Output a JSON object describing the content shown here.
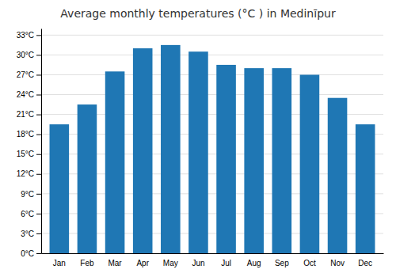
{
  "chart_data": {
    "type": "bar",
    "title": "Average monthly temperatures (°C ) in Medinīpur",
    "categories": [
      "Jan",
      "Feb",
      "Mar",
      "Apr",
      "May",
      "Jun",
      "Jul",
      "Aug",
      "Sep",
      "Oct",
      "Nov",
      "Dec"
    ],
    "values": [
      19.5,
      22.5,
      27.5,
      31.0,
      31.5,
      30.5,
      28.5,
      28.0,
      28.0,
      27.0,
      23.5,
      19.5
    ],
    "ylim": [
      0,
      34
    ],
    "yticks": [
      {
        "value": 0,
        "label": "0°C"
      },
      {
        "value": 3,
        "label": "3°C"
      },
      {
        "value": 6,
        "label": "6°C"
      },
      {
        "value": 9,
        "label": "9°C"
      },
      {
        "value": 12,
        "label": "12°C"
      },
      {
        "value": 15,
        "label": "15°C"
      },
      {
        "value": 18,
        "label": "18°C"
      },
      {
        "value": 21,
        "label": "21°C"
      },
      {
        "value": 24,
        "label": "24°C"
      },
      {
        "value": 27,
        "label": "27°C"
      },
      {
        "value": 30,
        "label": "30°C"
      },
      {
        "value": 33,
        "label": "33°C"
      }
    ],
    "grid": true
  }
}
